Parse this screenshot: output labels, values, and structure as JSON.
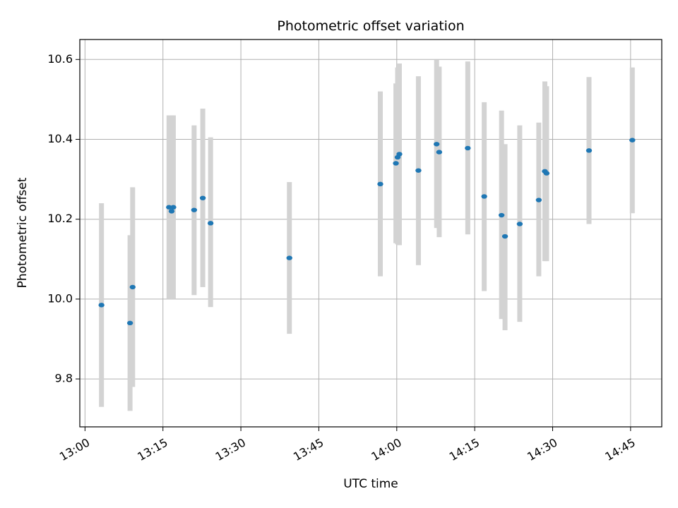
{
  "chart_data": {
    "type": "scatter",
    "title": "Photometric offset variation",
    "xlabel": "UTC time",
    "ylabel": "Photometric offset",
    "x_unit": "time (HH:MM, UTC)",
    "xlim": [
      "12:59:00",
      "14:51:00"
    ],
    "ylim": [
      9.68,
      10.65
    ],
    "x_ticks": [
      "13:00",
      "13:15",
      "13:30",
      "13:45",
      "14:00",
      "14:15",
      "14:30",
      "14:45"
    ],
    "y_ticks": [
      9.8,
      10.0,
      10.2,
      10.4,
      10.6
    ],
    "grid": true,
    "marker_color": "#1f77b4",
    "errorbar_color": "#d3d3d3",
    "points": [
      {
        "time": "13:03:10",
        "y": 9.985,
        "ylow": 9.73,
        "yhigh": 10.24
      },
      {
        "time": "13:08:40",
        "y": 9.94,
        "ylow": 9.72,
        "yhigh": 10.16
      },
      {
        "time": "13:09:10",
        "y": 10.03,
        "ylow": 9.78,
        "yhigh": 10.28
      },
      {
        "time": "13:16:10",
        "y": 10.23,
        "ylow": 10.0,
        "yhigh": 10.46
      },
      {
        "time": "13:16:40",
        "y": 10.22,
        "ylow": 10.0,
        "yhigh": 10.46
      },
      {
        "time": "13:17:00",
        "y": 10.23,
        "ylow": 10.0,
        "yhigh": 10.46
      },
      {
        "time": "13:21:00",
        "y": 10.223,
        "ylow": 10.01,
        "yhigh": 10.435
      },
      {
        "time": "13:22:40",
        "y": 10.253,
        "ylow": 10.03,
        "yhigh": 10.477
      },
      {
        "time": "13:24:10",
        "y": 10.19,
        "ylow": 9.98,
        "yhigh": 10.405
      },
      {
        "time": "13:39:20",
        "y": 10.103,
        "ylow": 9.913,
        "yhigh": 10.293
      },
      {
        "time": "13:56:50",
        "y": 10.288,
        "ylow": 10.057,
        "yhigh": 10.52
      },
      {
        "time": "13:59:50",
        "y": 10.34,
        "ylow": 10.14,
        "yhigh": 10.54
      },
      {
        "time": "14:00:10",
        "y": 10.355,
        "ylow": 10.137,
        "yhigh": 10.58
      },
      {
        "time": "14:00:30",
        "y": 10.363,
        "ylow": 10.135,
        "yhigh": 10.59
      },
      {
        "time": "14:04:10",
        "y": 10.322,
        "ylow": 10.085,
        "yhigh": 10.558
      },
      {
        "time": "14:07:40",
        "y": 10.388,
        "ylow": 10.178,
        "yhigh": 10.6
      },
      {
        "time": "14:08:10",
        "y": 10.368,
        "ylow": 10.155,
        "yhigh": 10.582
      },
      {
        "time": "14:13:40",
        "y": 10.378,
        "ylow": 10.162,
        "yhigh": 10.595
      },
      {
        "time": "14:16:50",
        "y": 10.257,
        "ylow": 10.02,
        "yhigh": 10.493
      },
      {
        "time": "14:20:10",
        "y": 10.21,
        "ylow": 9.95,
        "yhigh": 10.472
      },
      {
        "time": "14:20:50",
        "y": 10.157,
        "ylow": 9.922,
        "yhigh": 10.388
      },
      {
        "time": "14:23:40",
        "y": 10.188,
        "ylow": 9.943,
        "yhigh": 10.435
      },
      {
        "time": "14:27:20",
        "y": 10.248,
        "ylow": 10.057,
        "yhigh": 10.442
      },
      {
        "time": "14:28:30",
        "y": 10.32,
        "ylow": 10.095,
        "yhigh": 10.545
      },
      {
        "time": "14:28:50",
        "y": 10.315,
        "ylow": 10.095,
        "yhigh": 10.533
      },
      {
        "time": "14:37:00",
        "y": 10.372,
        "ylow": 10.188,
        "yhigh": 10.556
      },
      {
        "time": "14:45:20",
        "y": 10.398,
        "ylow": 10.215,
        "yhigh": 10.58
      }
    ]
  }
}
